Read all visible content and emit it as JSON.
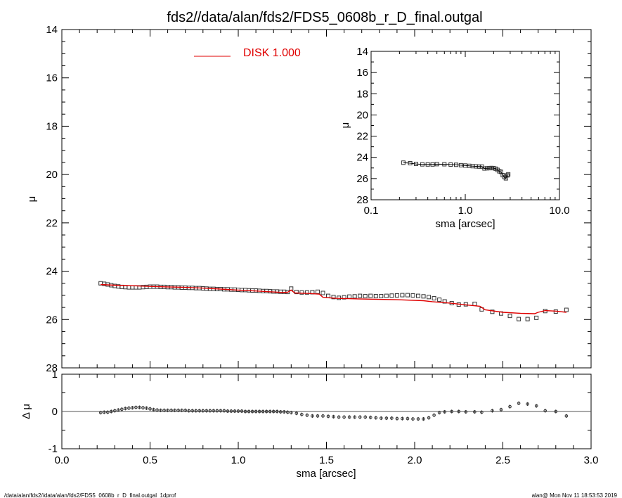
{
  "title": "fds2//data/alan/fds2/FDS5_0608b_r_D_final.outgal",
  "footer": {
    "left": "/data/alan/fds2//data/alan/fds2/FDS5_0608b_r_D_final.outgal_1dprof",
    "right": "alan@  Mon Nov 11 18:53:53 2019"
  },
  "colors": {
    "model": "#e00000",
    "data": "#333333",
    "axes": "#000000",
    "zero_line": "#555555"
  },
  "chart_data": [
    {
      "id": "main-profile",
      "type": "scatter",
      "xlabel": "",
      "ylabel": "μ",
      "xlim": [
        0.0,
        3.0
      ],
      "ylim": [
        28,
        14
      ],
      "ytick_labels": [
        "14",
        "16",
        "18",
        "20",
        "22",
        "24",
        "26",
        "28"
      ],
      "legend": {
        "position": "top-left",
        "entries": [
          {
            "label": "DISK  1.000",
            "color": "#e00000"
          }
        ]
      },
      "series": [
        {
          "kind": "points",
          "x": [
            0.22,
            0.24,
            0.26,
            0.28,
            0.3,
            0.32,
            0.34,
            0.36,
            0.38,
            0.4,
            0.42,
            0.44,
            0.46,
            0.48,
            0.5,
            0.52,
            0.54,
            0.56,
            0.58,
            0.6,
            0.62,
            0.64,
            0.66,
            0.68,
            0.7,
            0.72,
            0.74,
            0.76,
            0.78,
            0.8,
            0.82,
            0.84,
            0.86,
            0.88,
            0.9,
            0.92,
            0.94,
            0.96,
            0.98,
            1.0,
            1.02,
            1.04,
            1.06,
            1.08,
            1.1,
            1.12,
            1.14,
            1.16,
            1.18,
            1.2,
            1.22,
            1.24,
            1.26,
            1.28,
            1.3,
            1.33,
            1.36,
            1.39,
            1.42,
            1.45,
            1.48,
            1.51,
            1.54,
            1.57,
            1.6,
            1.63,
            1.66,
            1.69,
            1.72,
            1.75,
            1.78,
            1.81,
            1.84,
            1.87,
            1.9,
            1.93,
            1.96,
            1.99,
            2.02,
            2.05,
            2.08,
            2.11,
            2.14,
            2.17,
            2.21,
            2.25,
            2.29,
            2.34,
            2.38,
            2.44,
            2.49,
            2.54,
            2.59,
            2.64,
            2.69,
            2.74,
            2.8,
            2.86
          ],
          "y": [
            24.5,
            24.52,
            24.55,
            24.58,
            24.61,
            24.63,
            24.65,
            24.66,
            24.67,
            24.67,
            24.67,
            24.67,
            24.66,
            24.65,
            24.64,
            24.64,
            24.64,
            24.65,
            24.65,
            24.66,
            24.66,
            24.67,
            24.67,
            24.68,
            24.68,
            24.69,
            24.69,
            24.7,
            24.7,
            24.71,
            24.72,
            24.73,
            24.73,
            24.74,
            24.74,
            24.75,
            24.75,
            24.76,
            24.76,
            24.77,
            24.78,
            24.78,
            24.79,
            24.8,
            24.8,
            24.81,
            24.82,
            24.82,
            24.83,
            24.84,
            24.84,
            24.85,
            24.85,
            24.86,
            24.72,
            24.86,
            24.88,
            24.88,
            24.87,
            24.85,
            24.9,
            25.02,
            25.07,
            25.1,
            25.08,
            25.05,
            25.04,
            25.02,
            25.03,
            25.02,
            25.03,
            25.03,
            25.02,
            25.01,
            25.0,
            24.99,
            24.99,
            25.0,
            25.02,
            25.04,
            25.07,
            25.12,
            25.18,
            25.25,
            25.32,
            25.38,
            25.37,
            25.35,
            25.58,
            25.68,
            25.75,
            25.85,
            25.98,
            25.98,
            25.93,
            25.65,
            25.67,
            25.6
          ]
        },
        {
          "kind": "line",
          "name": "DISK  1.000",
          "x": [
            0.22,
            0.3,
            0.4,
            0.5,
            0.6,
            0.7,
            0.8,
            0.9,
            1.0,
            1.1,
            1.2,
            1.25,
            1.28,
            1.3,
            1.32,
            1.4,
            1.46,
            1.48,
            1.55,
            1.7,
            1.9,
            2.05,
            2.1,
            2.2,
            2.3,
            2.37,
            2.4,
            2.5,
            2.6,
            2.68,
            2.7,
            2.74,
            2.8,
            2.86
          ],
          "y": [
            24.55,
            24.58,
            24.6,
            24.63,
            24.65,
            24.67,
            24.7,
            24.74,
            24.78,
            24.82,
            24.86,
            24.88,
            24.87,
            24.78,
            24.9,
            24.92,
            24.95,
            25.08,
            25.12,
            25.15,
            25.18,
            25.22,
            25.26,
            25.32,
            25.4,
            25.45,
            25.6,
            25.7,
            25.74,
            25.76,
            25.7,
            25.63,
            25.65,
            25.7
          ]
        }
      ]
    },
    {
      "id": "inset-profile",
      "type": "scatter",
      "xscale": "log",
      "xlabel": "sma [arcsec]",
      "ylabel": "μ",
      "xlim": [
        0.1,
        10.0
      ],
      "ylim": [
        28,
        14
      ],
      "xtick_labels": [
        "0.1",
        "1.0",
        "10.0"
      ],
      "ytick_labels": [
        "14",
        "16",
        "18",
        "20",
        "22",
        "24",
        "26",
        "28"
      ],
      "series": [
        {
          "kind": "points",
          "x": [
            0.22,
            0.26,
            0.3,
            0.35,
            0.4,
            0.45,
            0.5,
            0.6,
            0.7,
            0.8,
            0.9,
            1.0,
            1.1,
            1.2,
            1.3,
            1.4,
            1.5,
            1.6,
            1.7,
            1.8,
            1.9,
            2.0,
            2.1,
            2.2,
            2.3,
            2.4,
            2.5,
            2.6,
            2.7,
            2.8,
            2.86
          ],
          "y": [
            24.5,
            24.55,
            24.62,
            24.66,
            24.67,
            24.67,
            24.64,
            24.65,
            24.68,
            24.7,
            24.74,
            24.77,
            24.8,
            24.83,
            24.85,
            24.87,
            24.87,
            25.05,
            25.03,
            25.02,
            25.0,
            25.02,
            25.07,
            25.18,
            25.32,
            25.37,
            25.68,
            25.85,
            25.98,
            25.7,
            25.6
          ]
        }
      ]
    },
    {
      "id": "residuals",
      "type": "scatter",
      "xlabel": "sma [arcsec]",
      "ylabel": "Δ μ",
      "xlim": [
        0.0,
        3.0
      ],
      "ylim": [
        -1.0,
        1.0
      ],
      "xtick_labels": [
        "0.0",
        "0.5",
        "1.0",
        "1.5",
        "2.0",
        "2.5",
        "3.0"
      ],
      "ytick_labels": [
        "1",
        "0",
        "-1"
      ],
      "series": [
        {
          "kind": "points_with_errors",
          "x": [
            0.22,
            0.24,
            0.26,
            0.28,
            0.3,
            0.32,
            0.34,
            0.36,
            0.38,
            0.4,
            0.42,
            0.44,
            0.46,
            0.48,
            0.5,
            0.52,
            0.54,
            0.56,
            0.58,
            0.6,
            0.62,
            0.64,
            0.66,
            0.68,
            0.7,
            0.72,
            0.74,
            0.76,
            0.78,
            0.8,
            0.82,
            0.84,
            0.86,
            0.88,
            0.9,
            0.92,
            0.94,
            0.96,
            0.98,
            1.0,
            1.02,
            1.04,
            1.06,
            1.08,
            1.1,
            1.12,
            1.14,
            1.16,
            1.18,
            1.2,
            1.22,
            1.24,
            1.26,
            1.28,
            1.3,
            1.33,
            1.36,
            1.39,
            1.42,
            1.45,
            1.48,
            1.51,
            1.54,
            1.57,
            1.6,
            1.63,
            1.66,
            1.69,
            1.72,
            1.75,
            1.78,
            1.81,
            1.84,
            1.87,
            1.9,
            1.93,
            1.96,
            1.99,
            2.02,
            2.05,
            2.08,
            2.11,
            2.14,
            2.17,
            2.21,
            2.25,
            2.29,
            2.34,
            2.38,
            2.44,
            2.49,
            2.54,
            2.59,
            2.64,
            2.69,
            2.74,
            2.8,
            2.86
          ],
          "y": [
            -0.03,
            -0.02,
            -0.02,
            0.0,
            0.02,
            0.04,
            0.06,
            0.08,
            0.09,
            0.1,
            0.11,
            0.11,
            0.1,
            0.09,
            0.07,
            0.05,
            0.04,
            0.03,
            0.03,
            0.03,
            0.03,
            0.03,
            0.03,
            0.03,
            0.03,
            0.02,
            0.02,
            0.02,
            0.02,
            0.02,
            0.02,
            0.02,
            0.02,
            0.02,
            0.02,
            0.02,
            0.01,
            0.01,
            0.01,
            0.01,
            0.01,
            0.0,
            0.0,
            0.0,
            0.0,
            0.0,
            0.0,
            0.0,
            0.0,
            0.0,
            0.0,
            -0.01,
            -0.01,
            -0.02,
            -0.03,
            -0.05,
            -0.08,
            -0.1,
            -0.12,
            -0.12,
            -0.12,
            -0.13,
            -0.14,
            -0.15,
            -0.15,
            -0.15,
            -0.15,
            -0.15,
            -0.15,
            -0.16,
            -0.17,
            -0.18,
            -0.18,
            -0.18,
            -0.19,
            -0.19,
            -0.19,
            -0.2,
            -0.2,
            -0.2,
            -0.17,
            -0.1,
            -0.03,
            -0.01,
            0.0,
            0.0,
            -0.01,
            -0.01,
            -0.02,
            0.02,
            0.05,
            0.13,
            0.22,
            0.2,
            0.15,
            0.02,
            0.0,
            -0.12
          ],
          "yerr": 0.05
        }
      ]
    }
  ]
}
